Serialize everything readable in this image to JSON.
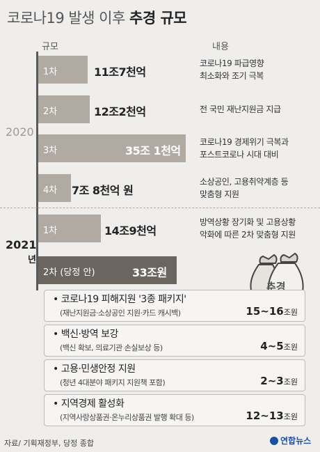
{
  "title": {
    "prefix": "코로나19 발생 이후 ",
    "bold": "추경 규모"
  },
  "headers": {
    "scale": "규모",
    "content": "내용"
  },
  "years": {
    "y2020": "2020",
    "y2021": "2021",
    "y2021_suffix": "년"
  },
  "chart_data": {
    "type": "bar",
    "orientation": "horizontal",
    "unit": "조원",
    "categories": [
      "1차",
      "2차",
      "3차",
      "4차",
      "1차",
      "2차 (당정 안)"
    ],
    "groups": [
      "2020",
      "2020",
      "2020",
      "2020",
      "2021",
      "2021"
    ],
    "values": [
      11.7,
      12.2,
      35.1,
      7.8,
      14.9,
      33
    ],
    "value_labels": [
      "11조7천억",
      "12조2천억",
      "35조 1천억",
      "7조 8천억 원",
      "14조9천억",
      "33조원"
    ],
    "descriptions": [
      [
        "코로나19 파급영향",
        "최소화와 조기 극복"
      ],
      [
        "전 국민 재난지원금 지급"
      ],
      [
        "코로나19 경제위기 극복과",
        "포스트코로나 시대 대비"
      ],
      [
        "소상공인, 고용취약계층 등",
        "맞춤형 지원"
      ],
      [
        "방역상황 장기화 및 고용상황",
        "악화에 따른 2차 맞춤형 지원"
      ],
      []
    ]
  },
  "breakdown": [
    {
      "title": "코로나19 피해지원 '3종 패키지'",
      "sub": "(재난지원금·소상공인 지원·카드 캐시백)",
      "amount": "15~16",
      "unit": "조원"
    },
    {
      "title": "백신·방역 보강",
      "sub": "(백신 확보, 의료기관 손실보상 등)",
      "amount": "4~5",
      "unit": "조원"
    },
    {
      "title": "고용·민생안정 지원",
      "sub": "(청년 4대분야 패키지 지원책 포함)",
      "amount": "2~3",
      "unit": "조원"
    },
    {
      "title": "지역경제 활성화",
      "sub": "(지역사랑상품권·온누리상품권 발행 확대 등)",
      "amount": "12~13",
      "unit": "조원"
    }
  ],
  "bag_label": "추경",
  "source": "자료/ 기획재정부, 당정 종합",
  "logo": "연합뉴스",
  "colors": {
    "bar": "#b0aaa3",
    "bar_final": "#6b6560",
    "background": "#efeeec"
  }
}
